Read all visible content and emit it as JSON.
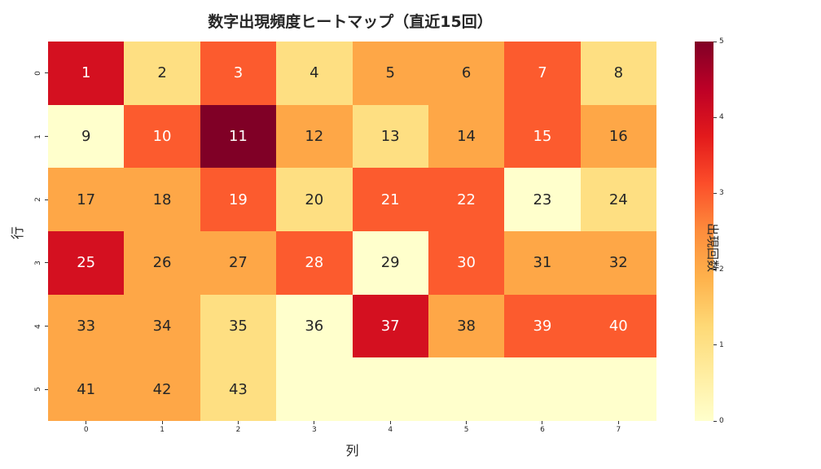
{
  "chart_data": {
    "type": "heatmap",
    "title": "数字出現頻度ヒートマップ（直近15回）",
    "xlabel": "列",
    "ylabel": "行",
    "colorbar_label": "出現回数",
    "colormap": "YlOrRd",
    "vmin": 0,
    "vmax": 5,
    "x_ticks": [
      "0",
      "1",
      "2",
      "3",
      "4",
      "5",
      "6",
      "7"
    ],
    "y_ticks": [
      "0",
      "1",
      "2",
      "3",
      "4",
      "5"
    ],
    "colorbar_ticks": [
      "0",
      "1",
      "2",
      "3",
      "4",
      "5"
    ],
    "annotations": [
      [
        "1",
        "2",
        "3",
        "4",
        "5",
        "6",
        "7",
        "8"
      ],
      [
        "9",
        "10",
        "11",
        "12",
        "13",
        "14",
        "15",
        "16"
      ],
      [
        "17",
        "18",
        "19",
        "20",
        "21",
        "22",
        "23",
        "24"
      ],
      [
        "25",
        "26",
        "27",
        "28",
        "29",
        "30",
        "31",
        "32"
      ],
      [
        "33",
        "34",
        "35",
        "36",
        "37",
        "38",
        "39",
        "40"
      ],
      [
        "41",
        "42",
        "43",
        "",
        "",
        "",
        "",
        ""
      ]
    ],
    "values": [
      [
        4,
        1,
        3,
        1,
        2,
        2,
        3,
        1
      ],
      [
        0,
        3,
        5,
        2,
        1,
        2,
        3,
        2
      ],
      [
        2,
        2,
        3,
        1,
        3,
        3,
        0,
        1
      ],
      [
        4,
        2,
        2,
        3,
        0,
        3,
        2,
        2
      ],
      [
        2,
        2,
        1,
        0,
        4,
        2,
        3,
        3
      ],
      [
        2,
        2,
        1,
        0,
        0,
        0,
        0,
        0
      ]
    ],
    "number_frequency": {
      "1": 4,
      "2": 1,
      "3": 3,
      "4": 1,
      "5": 2,
      "6": 2,
      "7": 3,
      "8": 1,
      "9": 0,
      "10": 3,
      "11": 5,
      "12": 2,
      "13": 1,
      "14": 2,
      "15": 3,
      "16": 2,
      "17": 2,
      "18": 2,
      "19": 3,
      "20": 1,
      "21": 3,
      "22": 3,
      "23": 0,
      "24": 1,
      "25": 4,
      "26": 2,
      "27": 2,
      "28": 3,
      "29": 0,
      "30": 3,
      "31": 2,
      "32": 2,
      "33": 2,
      "34": 2,
      "35": 1,
      "36": 0,
      "37": 4,
      "38": 2,
      "39": 3,
      "40": 3,
      "41": 2,
      "42": 2,
      "43": 1
    }
  },
  "palette": {
    "0": "#ffffcc",
    "1": "#fedf82",
    "2": "#fea747",
    "3": "#fc5b2e",
    "4": "#d41020",
    "5": "#800026"
  },
  "text_colors": {
    "dark": "#262626",
    "light": "#ffffff"
  }
}
